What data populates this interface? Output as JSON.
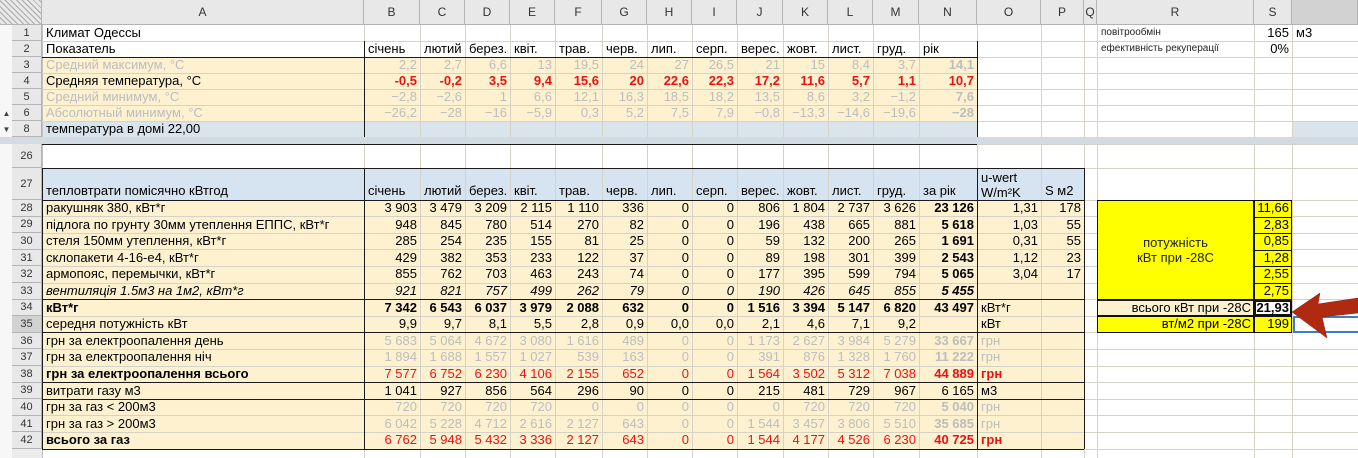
{
  "colors": {
    "beige_fill": "#fdf1d0",
    "header_blue": "#d6e3f1",
    "row8_blue": "#d9e4ec",
    "hidden_band": "#d2dae2",
    "yellow_highlight": "#ffff00",
    "red_value": "#ee1111",
    "muted_value": "#bdbdbd",
    "arrow_red": "#b02a12",
    "selection_blue": "#3f7cc0",
    "black_border": "#1a1a1a"
  },
  "sheet": {
    "column_letters": [
      "A",
      "B",
      "C",
      "D",
      "E",
      "F",
      "G",
      "H",
      "I",
      "J",
      "K",
      "L",
      "M",
      "N",
      "O",
      "P",
      "Q",
      "R",
      "S"
    ],
    "row_numbers": [
      "1",
      "2",
      "3",
      "4",
      "5",
      "6",
      "8",
      "26",
      "27",
      "28",
      "29",
      "30",
      "31",
      "32",
      "33",
      "34",
      "35",
      "36",
      "37",
      "38",
      "39",
      "40",
      "41",
      "42"
    ],
    "selected_row": "35",
    "icons": {
      "group_collapse_up": "▲",
      "group_collapse_down": "▼"
    },
    "top_right": {
      "air_label": "повітрообмін",
      "air_value": "165",
      "air_unit": "м3",
      "recup_label": "ефективність рекуперації",
      "recup_value": "0%"
    },
    "months": [
      "січень",
      "лютий",
      "берез.",
      "квіт.",
      "трав.",
      "черв.",
      "лип.",
      "серп.",
      "верес.",
      "жовт.",
      "лист.",
      "груд."
    ],
    "climate": {
      "title": "Климат Одессы",
      "header_label": "Показатель",
      "year_header": "рік",
      "rows": [
        {
          "row": "3",
          "label": "Средний максимум, °С",
          "muted": true,
          "values": [
            "2,2",
            "2,7",
            "6,6",
            "13",
            "19,5",
            "24",
            "27",
            "26,5",
            "21",
            "15",
            "8,4",
            "3,7"
          ],
          "year": "14,1"
        },
        {
          "row": "4",
          "label": "Средняя температура, °С",
          "red": true,
          "values": [
            "-0,5",
            "-0,2",
            "3,5",
            "9,4",
            "15,6",
            "20",
            "22,6",
            "22,3",
            "17,2",
            "11,6",
            "5,7",
            "1,1"
          ],
          "year": "10,7"
        },
        {
          "row": "5",
          "label": "Средний минимум, °С",
          "muted": true,
          "values": [
            "−2,8",
            "−2,6",
            "1",
            "6,6",
            "12,1",
            "16,3",
            "18,5",
            "18,2",
            "13,5",
            "8,6",
            "3,2",
            "−1,2"
          ],
          "year": "7,6"
        },
        {
          "row": "6",
          "label": "Абсолютный минимум, °С",
          "muted": true,
          "values": [
            "−26,2",
            "−28",
            "−16",
            "−5,9",
            "0,3",
            "5,2",
            "7,5",
            "7,9",
            "−0,8",
            "−13,3",
            "−14,6",
            "−19,6"
          ],
          "year": "−28"
        }
      ],
      "house_temp_label": "температура в домі 22,00"
    },
    "heatloss": {
      "header": "тепловтрати помісячно кВтгод",
      "year_header": "за рік",
      "uwert_header_line1": "u-wert",
      "uwert_header_line2": "W/m²K",
      "area_header": "S м2",
      "rows": [
        {
          "row": "28",
          "label": "ракушняк 380, кВт*г",
          "values": [
            "3 903",
            "3 479",
            "3 209",
            "2 115",
            "1 110",
            "336",
            "0",
            "0",
            "806",
            "1 804",
            "2 737",
            "3 626"
          ],
          "year": "23 126",
          "uwert": "1,31",
          "area": "178",
          "power": "11,66"
        },
        {
          "row": "29",
          "label": "підлога по грунту 30мм утеплення ЕППС, кВт*г",
          "values": [
            "948",
            "845",
            "780",
            "514",
            "270",
            "82",
            "0",
            "0",
            "196",
            "438",
            "665",
            "881"
          ],
          "year": "5 618",
          "uwert": "1,03",
          "area": "55",
          "power": "2,83"
        },
        {
          "row": "30",
          "label": "стеля 150мм утеплення, кВт*г",
          "values": [
            "285",
            "254",
            "235",
            "155",
            "81",
            "25",
            "0",
            "0",
            "59",
            "132",
            "200",
            "265"
          ],
          "year": "1 691",
          "uwert": "0,31",
          "area": "55",
          "power": "0,85"
        },
        {
          "row": "31",
          "label": "склопакети 4-16-е4, кВт*г",
          "values": [
            "429",
            "382",
            "353",
            "233",
            "122",
            "37",
            "0",
            "0",
            "89",
            "198",
            "301",
            "399"
          ],
          "year": "2 543",
          "uwert": "1,12",
          "area": "23",
          "power": "1,28"
        },
        {
          "row": "32",
          "label": "армопояс, перемычки, кВт*г",
          "values": [
            "855",
            "762",
            "703",
            "463",
            "243",
            "74",
            "0",
            "0",
            "177",
            "395",
            "599",
            "794"
          ],
          "year": "5 065",
          "uwert": "3,04",
          "area": "17",
          "power": "2,55"
        },
        {
          "row": "33",
          "label": "вентиляція 1.5м3 на 1м2, кВт*г",
          "italic": true,
          "values": [
            "921",
            "821",
            "757",
            "499",
            "262",
            "79",
            "0",
            "0",
            "190",
            "426",
            "645",
            "855"
          ],
          "year": "5 455",
          "uwert": "",
          "area": "",
          "power": "2,75"
        }
      ],
      "power_box_line1": "потужність",
      "power_box_line2": "кВт при -28С",
      "totals": [
        {
          "row": "34",
          "label": "кВт*г",
          "bold_label": true,
          "bold_values": true,
          "values": [
            "7 342",
            "6 543",
            "6 037",
            "3 979",
            "2 088",
            "632",
            "0",
            "0",
            "1 516",
            "3 394",
            "5 147",
            "6 820"
          ],
          "year": "43 497",
          "unit": "кВт*г"
        },
        {
          "row": "35",
          "label": "середня потужність кВт",
          "values": [
            "9,9",
            "9,7",
            "8,1",
            "5,5",
            "2,8",
            "0,9",
            "0,0",
            "0,0",
            "2,1",
            "4,6",
            "7,1",
            "9,2"
          ],
          "year": "",
          "unit": "кВт"
        },
        {
          "row": "36",
          "label": "грн за електроопалення день",
          "muted": true,
          "values": [
            "5 683",
            "5 064",
            "4 672",
            "3 080",
            "1 616",
            "489",
            "0",
            "0",
            "1 173",
            "2 627",
            "3 984",
            "5 279"
          ],
          "year": "33 667",
          "unit": "грн"
        },
        {
          "row": "37",
          "label": "грн за електроопалення ніч",
          "muted": true,
          "values": [
            "1 894",
            "1 688",
            "1 557",
            "1 027",
            "539",
            "163",
            "0",
            "0",
            "391",
            "876",
            "1 328",
            "1 760"
          ],
          "year": "11 222",
          "unit": "грн"
        },
        {
          "row": "38",
          "label": "грн за електроопалення всього",
          "bold_label": true,
          "red": true,
          "values": [
            "7 577",
            "6 752",
            "6 230",
            "4 106",
            "2 155",
            "652",
            "0",
            "0",
            "1 564",
            "3 502",
            "5 312",
            "7 038"
          ],
          "year": "44 889",
          "unit": "грн"
        },
        {
          "row": "39",
          "label": "витрати газу м3",
          "year_plain": true,
          "values": [
            "1 041",
            "927",
            "856",
            "564",
            "296",
            "90",
            "0",
            "0",
            "215",
            "481",
            "729",
            "967"
          ],
          "year": "6 165",
          "unit": "м3"
        },
        {
          "row": "40",
          "label": "грн за газ < 200м3",
          "muted": true,
          "values": [
            "720",
            "720",
            "720",
            "720",
            "0",
            "0",
            "0",
            "0",
            "0",
            "720",
            "720",
            "720"
          ],
          "year": "5 040",
          "unit": "грн"
        },
        {
          "row": "41",
          "label": "грн за газ > 200м3",
          "muted": true,
          "values": [
            "6 042",
            "5 228",
            "4 712",
            "2 616",
            "2 127",
            "643",
            "0",
            "0",
            "1 544",
            "3 457",
            "3 806",
            "5 510"
          ],
          "year": "35 685",
          "unit": "грн"
        },
        {
          "row": "42",
          "label": "всього за газ",
          "bold_label": true,
          "red": true,
          "values": [
            "6 762",
            "5 948",
            "5 432",
            "3 336",
            "2 127",
            "643",
            "0",
            "0",
            "1 544",
            "4 177",
            "4 526",
            "6 230"
          ],
          "year": "40 725",
          "unit": "грн"
        }
      ],
      "summary": {
        "kw_label": "всього кВт при -28C",
        "kw_value": "21,93",
        "wm2_label": "вт/м2 при -28С",
        "wm2_value": "199"
      }
    }
  }
}
